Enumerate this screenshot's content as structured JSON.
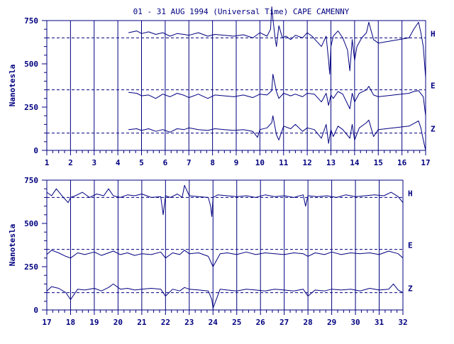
{
  "chart_data": {
    "type": "line",
    "title": "01 - 31 AUG 1994 (Universal Time) CAPE CAMENNY",
    "ylabel": "Nanotesla",
    "colors": {
      "line": "#000080",
      "frame": "#000080"
    },
    "panels": [
      {
        "xlim": [
          1,
          17
        ],
        "ylim": [
          0,
          750
        ],
        "x_ticks": [
          "1",
          "2",
          "3",
          "4",
          "5",
          "6",
          "7",
          "8",
          "9",
          "10",
          "11",
          "12",
          "13",
          "14",
          "15",
          "16",
          "17"
        ],
        "y_ticks": [
          "0",
          "250",
          "500",
          "750"
        ],
        "baselines": [
          650,
          350,
          100
        ],
        "series": [
          {
            "name": "H",
            "x": [
              4.45,
              4.8,
              5.0,
              5.3,
              5.6,
              5.9,
              6.2,
              6.5,
              6.8,
              7.0,
              7.4,
              7.8,
              8.1,
              8.5,
              8.9,
              9.3,
              9.7,
              10.0,
              10.3,
              10.45,
              10.5,
              10.55,
              10.65,
              10.7,
              10.8,
              10.95,
              11.1,
              11.3,
              11.5,
              11.8,
              12.0,
              12.2,
              12.4,
              12.6,
              12.8,
              12.9,
              12.95,
              13.0,
              13.1,
              13.3,
              13.5,
              13.7,
              13.8,
              13.9,
              14.0,
              14.1,
              14.3,
              14.5,
              14.6,
              14.8,
              15.0,
              16.3,
              16.5,
              16.7,
              16.8,
              16.9,
              17.0
            ],
            "y": [
              680,
              690,
              675,
              685,
              670,
              680,
              660,
              675,
              670,
              665,
              680,
              660,
              670,
              665,
              660,
              668,
              650,
              680,
              660,
              700,
              830,
              760,
              640,
              600,
              720,
              650,
              660,
              640,
              665,
              650,
              680,
              660,
              630,
              600,
              660,
              520,
              440,
              600,
              660,
              690,
              650,
              580,
              460,
              640,
              520,
              600,
              650,
              680,
              740,
              640,
              620,
              650,
              700,
              740,
              680,
              600,
              420
            ]
          },
          {
            "name": "E",
            "x": [
              4.45,
              4.8,
              5.0,
              5.3,
              5.6,
              5.9,
              6.2,
              6.5,
              6.8,
              7.0,
              7.4,
              7.8,
              8.1,
              8.5,
              8.9,
              9.3,
              9.7,
              10.0,
              10.3,
              10.5,
              10.55,
              10.7,
              10.8,
              11.0,
              11.3,
              11.5,
              11.8,
              12.0,
              12.3,
              12.6,
              12.8,
              12.9,
              13.0,
              13.1,
              13.3,
              13.5,
              13.8,
              13.9,
              14.0,
              14.2,
              14.5,
              14.6,
              14.8,
              15.0,
              16.3,
              16.5,
              16.7,
              16.9,
              17.0
            ],
            "y": [
              335,
              330,
              315,
              320,
              300,
              325,
              310,
              330,
              318,
              305,
              325,
              300,
              320,
              315,
              310,
              320,
              305,
              325,
              320,
              345,
              440,
              340,
              300,
              330,
              315,
              325,
              310,
              330,
              325,
              280,
              330,
              260,
              320,
              300,
              340,
              325,
              240,
              330,
              280,
              330,
              350,
              370,
              320,
              310,
              330,
              340,
              345,
              310,
              200
            ]
          },
          {
            "name": "Z",
            "x": [
              4.45,
              4.8,
              5.0,
              5.3,
              5.6,
              5.9,
              6.2,
              6.5,
              6.8,
              7.0,
              7.4,
              7.8,
              8.1,
              8.5,
              8.9,
              9.3,
              9.7,
              9.9,
              10.0,
              10.3,
              10.5,
              10.55,
              10.7,
              10.8,
              11.0,
              11.3,
              11.5,
              11.8,
              12.0,
              12.3,
              12.6,
              12.8,
              12.9,
              13.0,
              13.1,
              13.3,
              13.5,
              13.8,
              13.9,
              14.0,
              14.2,
              14.5,
              14.6,
              14.8,
              15.0,
              16.3,
              16.5,
              16.7,
              16.8,
              16.9,
              17.0
            ],
            "y": [
              120,
              125,
              115,
              125,
              110,
              120,
              105,
              125,
              120,
              130,
              120,
              115,
              125,
              120,
              115,
              120,
              110,
              75,
              120,
              130,
              160,
              200,
              90,
              60,
              140,
              125,
              150,
              110,
              130,
              120,
              70,
              150,
              40,
              120,
              80,
              140,
              120,
              70,
              150,
              60,
              130,
              160,
              175,
              80,
              120,
              140,
              155,
              170,
              130,
              60,
              0
            ]
          }
        ]
      },
      {
        "xlim": [
          17,
          32
        ],
        "ylim": [
          0,
          750
        ],
        "x_ticks": [
          "17",
          "18",
          "19",
          "20",
          "21",
          "22",
          "23",
          "24",
          "25",
          "26",
          "27",
          "28",
          "29",
          "30",
          "31",
          "32"
        ],
        "y_ticks": [
          "0",
          "250",
          "500",
          "750"
        ],
        "baselines": [
          650,
          350,
          100
        ],
        "series": [
          {
            "name": "H",
            "x": [
              17.0,
              17.2,
              17.4,
              17.7,
              17.9,
              18.0,
              18.2,
              18.5,
              18.8,
              19.1,
              19.4,
              19.6,
              19.8,
              20.1,
              20.4,
              20.7,
              21.0,
              21.4,
              21.8,
              21.9,
              22.0,
              22.2,
              22.5,
              22.7,
              22.8,
              23.0,
              23.4,
              23.8,
              23.9,
              23.95,
              24.0,
              24.2,
              24.6,
              25.0,
              25.4,
              25.8,
              26.2,
              26.6,
              27.0,
              27.4,
              27.8,
              27.9,
              28.0,
              28.4,
              28.8,
              29.2,
              29.6,
              30.0,
              30.4,
              30.8,
              31.2,
              31.5,
              31.8,
              32.0
            ],
            "y": [
              680,
              660,
              700,
              650,
              620,
              650,
              660,
              680,
              650,
              670,
              660,
              700,
              660,
              650,
              665,
              660,
              670,
              650,
              655,
              550,
              660,
              650,
              670,
              650,
              720,
              660,
              655,
              650,
              600,
              540,
              650,
              665,
              660,
              655,
              660,
              650,
              665,
              655,
              660,
              650,
              665,
              600,
              660,
              655,
              660,
              650,
              665,
              655,
              660,
              665,
              660,
              680,
              655,
              620
            ]
          },
          {
            "name": "E",
            "x": [
              17.0,
              17.2,
              17.5,
              17.8,
              18.0,
              18.3,
              18.6,
              19.0,
              19.3,
              19.6,
              19.8,
              20.1,
              20.4,
              20.7,
              21.0,
              21.4,
              21.8,
              22.0,
              22.3,
              22.6,
              22.8,
              23.0,
              23.4,
              23.8,
              24.0,
              24.3,
              24.6,
              25.0,
              25.4,
              25.8,
              26.2,
              26.6,
              27.0,
              27.4,
              27.8,
              28.0,
              28.3,
              28.7,
              29.0,
              29.4,
              29.8,
              30.2,
              30.6,
              31.0,
              31.4,
              31.8,
              32.0
            ],
            "y": [
              320,
              345,
              330,
              310,
              300,
              330,
              320,
              335,
              315,
              330,
              340,
              320,
              330,
              315,
              325,
              320,
              335,
              300,
              330,
              320,
              345,
              325,
              330,
              310,
              250,
              325,
              330,
              320,
              335,
              320,
              330,
              325,
              320,
              330,
              325,
              310,
              330,
              320,
              335,
              320,
              330,
              325,
              330,
              320,
              340,
              325,
              300
            ]
          },
          {
            "name": "Z",
            "x": [
              17.0,
              17.2,
              17.5,
              17.8,
              18.0,
              18.3,
              18.6,
              19.0,
              19.3,
              19.6,
              19.8,
              20.1,
              20.4,
              20.7,
              21.0,
              21.4,
              21.8,
              22.0,
              22.3,
              22.6,
              22.8,
              23.0,
              23.4,
              23.8,
              23.95,
              24.0,
              24.3,
              24.6,
              25.0,
              25.4,
              25.8,
              26.2,
              26.6,
              27.0,
              27.4,
              27.8,
              28.0,
              28.3,
              28.7,
              29.0,
              29.4,
              29.8,
              30.2,
              30.6,
              31.0,
              31.4,
              31.6,
              31.8,
              32.0
            ],
            "y": [
              110,
              135,
              125,
              100,
              60,
              120,
              115,
              125,
              110,
              130,
              150,
              120,
              125,
              115,
              120,
              125,
              120,
              80,
              120,
              110,
              130,
              120,
              115,
              110,
              60,
              10,
              120,
              115,
              110,
              120,
              115,
              110,
              120,
              115,
              110,
              120,
              80,
              115,
              110,
              120,
              115,
              120,
              110,
              125,
              115,
              120,
              150,
              115,
              100
            ]
          }
        ]
      }
    ]
  }
}
